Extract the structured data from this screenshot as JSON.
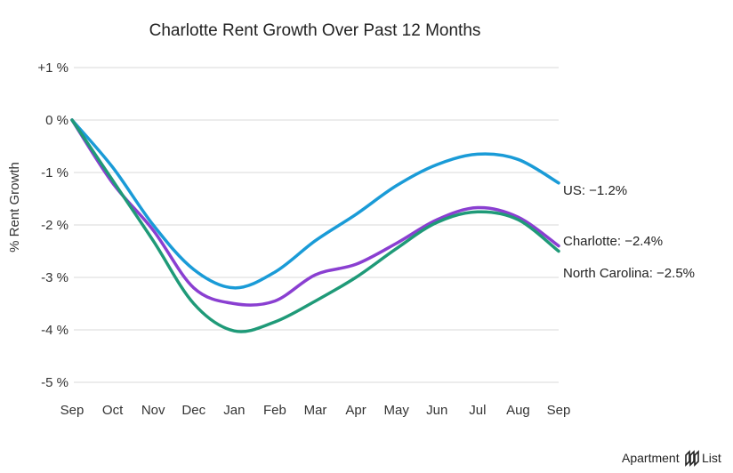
{
  "chart_data": {
    "type": "line",
    "title": "Charlotte Rent Growth Over Past 12 Months",
    "ylabel": "% Rent Growth",
    "xlabel": "",
    "ylim": [
      -5,
      1
    ],
    "yticks": [
      1,
      0,
      -1,
      -2,
      -3,
      -4,
      -5
    ],
    "ytick_labels": [
      "+1 %",
      "0 %",
      "-1 %",
      "-2 %",
      "-3 %",
      "-4 %",
      "-5 %"
    ],
    "categories": [
      "Sep",
      "Oct",
      "Nov",
      "Dec",
      "Jan",
      "Feb",
      "Mar",
      "Apr",
      "May",
      "Jun",
      "Jul",
      "Aug",
      "Sep"
    ],
    "grid": true,
    "legend": "end-of-line labels",
    "series": [
      {
        "name": "US",
        "end_label": "US: −1.2%",
        "color": "#1a9bd7",
        "values": [
          0,
          -0.9,
          -2.0,
          -2.85,
          -3.2,
          -2.9,
          -2.3,
          -1.8,
          -1.25,
          -0.85,
          -0.65,
          -0.75,
          -1.2
        ]
      },
      {
        "name": "Charlotte",
        "end_label": "Charlotte: −2.4%",
        "color": "#8a3fd1",
        "values": [
          0,
          -1.2,
          -2.1,
          -3.2,
          -3.5,
          -3.45,
          -2.95,
          -2.75,
          -2.35,
          -1.9,
          -1.67,
          -1.85,
          -2.4
        ]
      },
      {
        "name": "North Carolina",
        "end_label": "North Carolina: −2.5%",
        "color": "#1f9a78",
        "values": [
          0,
          -1.15,
          -2.3,
          -3.5,
          -4.02,
          -3.85,
          -3.45,
          -3.0,
          -2.45,
          -1.95,
          -1.75,
          -1.9,
          -2.5
        ]
      }
    ]
  },
  "brand": {
    "name": "Apartment List",
    "word1": "Apartment",
    "word2": "List"
  }
}
